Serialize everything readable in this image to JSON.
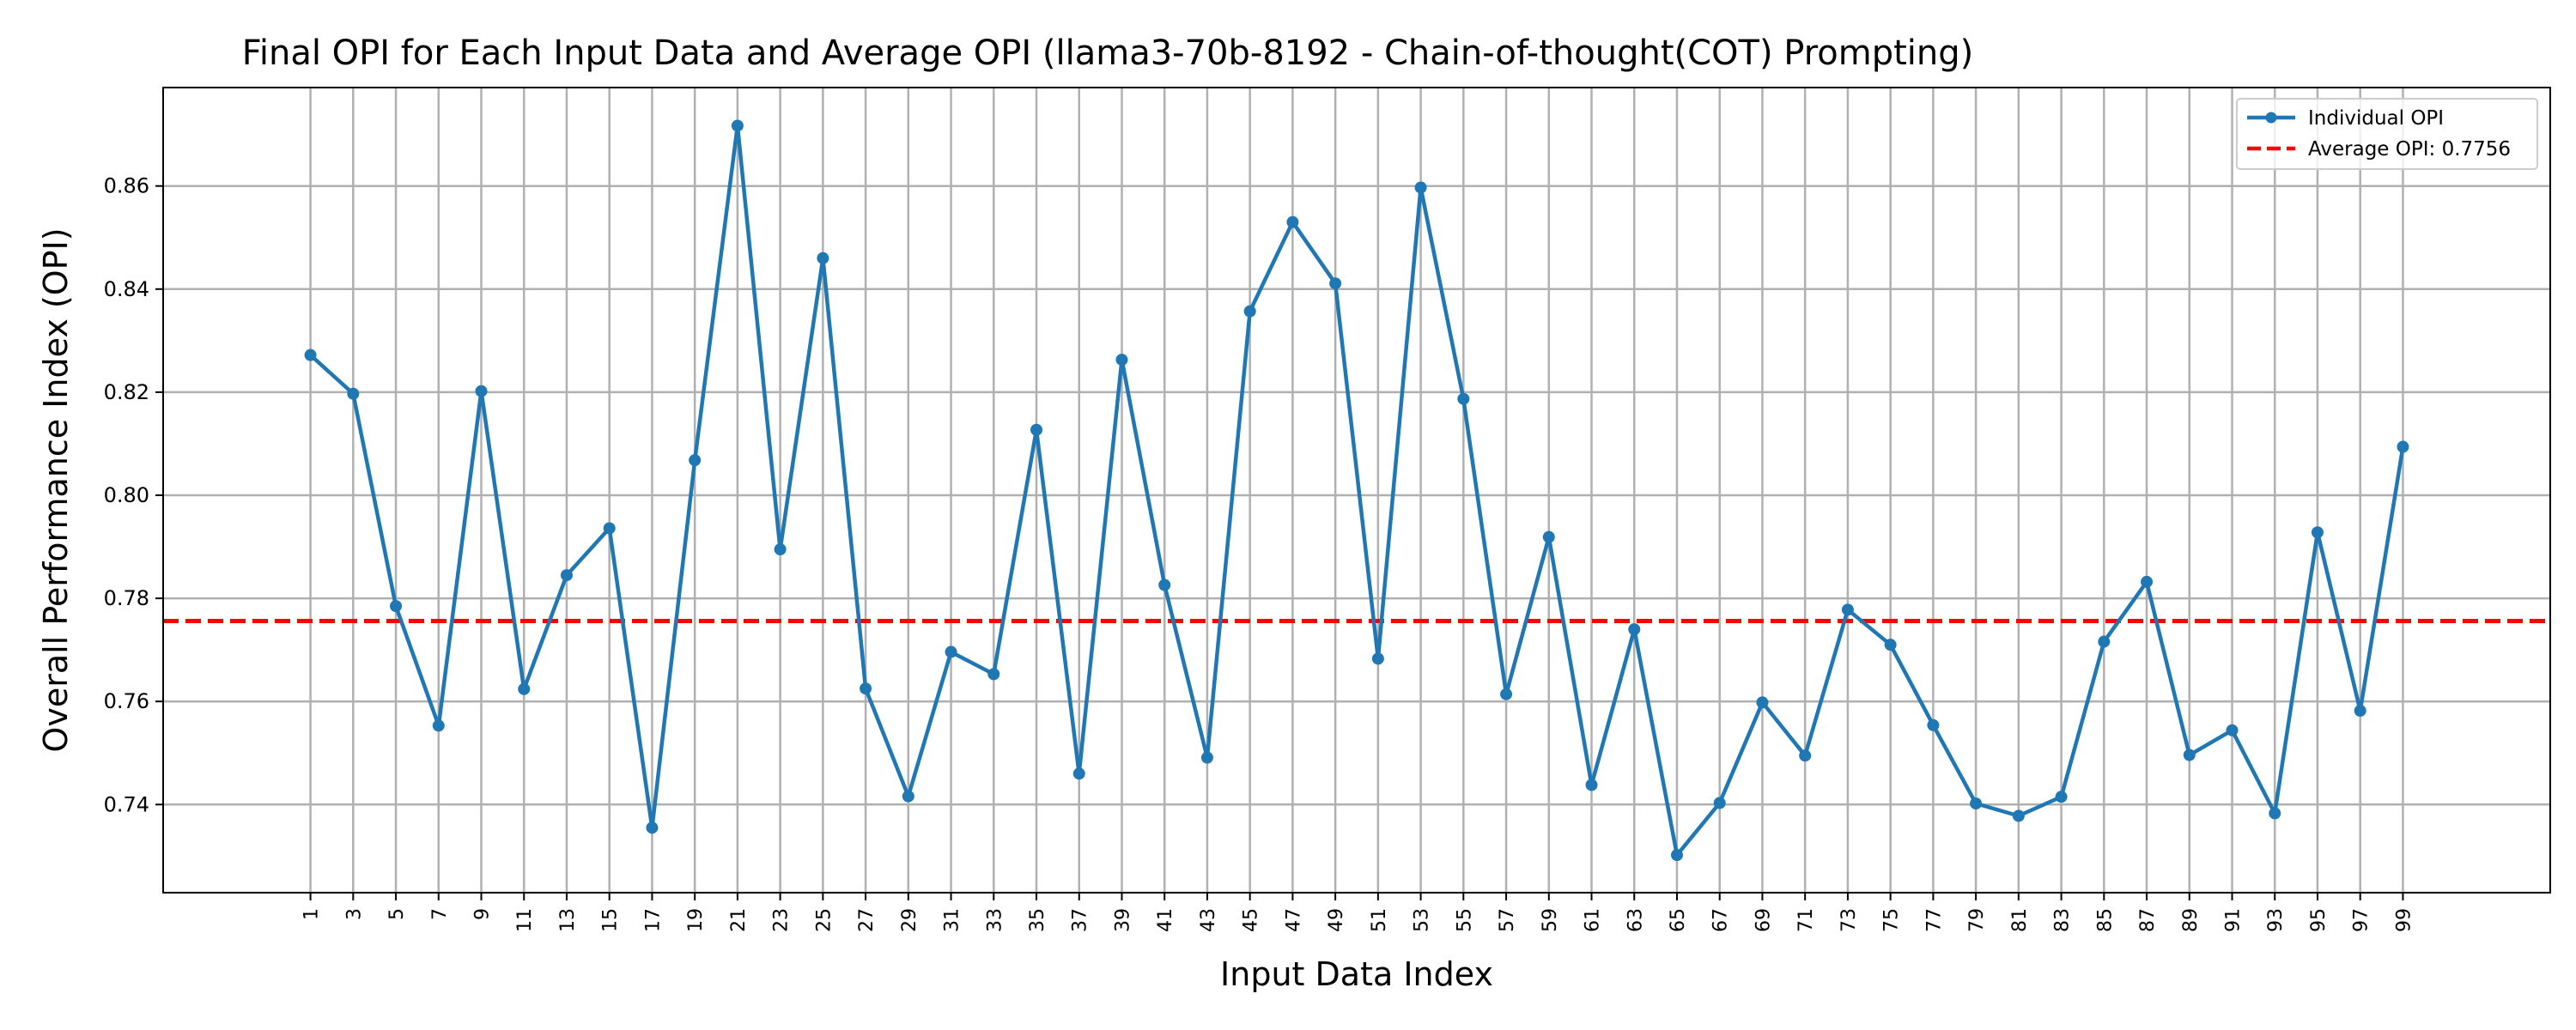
{
  "chart_data": {
    "type": "line",
    "title": "Final OPI for Each Input Data and Average OPI (llama3-70b-8192 - Chain-of-thought(COT) Prompting)",
    "xlabel": "Input Data Index",
    "ylabel": "Overall Performance Index (OPI)",
    "x": [
      1,
      3,
      5,
      7,
      9,
      11,
      13,
      15,
      17,
      19,
      21,
      23,
      25,
      27,
      29,
      31,
      33,
      35,
      37,
      39,
      41,
      43,
      45,
      47,
      49,
      51,
      53,
      55,
      57,
      59,
      61,
      63,
      65,
      67,
      69,
      71,
      73,
      75,
      77,
      79,
      81,
      83,
      85,
      87,
      89,
      91,
      93,
      95,
      97,
      99
    ],
    "xtick_labels": [
      "1",
      "3",
      "5",
      "7",
      "9",
      "11",
      "13",
      "15",
      "17",
      "19",
      "21",
      "23",
      "25",
      "27",
      "29",
      "31",
      "33",
      "35",
      "37",
      "39",
      "41",
      "43",
      "45",
      "47",
      "49",
      "51",
      "53",
      "55",
      "57",
      "59",
      "61",
      "63",
      "65",
      "67",
      "69",
      "71",
      "73",
      "75",
      "77",
      "79",
      "81",
      "83",
      "85",
      "87",
      "89",
      "91",
      "93",
      "95",
      "97",
      "99"
    ],
    "ytick_values": [
      0.74,
      0.76,
      0.78,
      0.8,
      0.82,
      0.84,
      0.86
    ],
    "ytick_labels": [
      "0.74",
      "0.76",
      "0.78",
      "0.80",
      "0.82",
      "0.84",
      "0.86"
    ],
    "xlim": [
      -5.9,
      105.9
    ],
    "ylim": [
      0.7229,
      0.8791
    ],
    "grid": true,
    "legend_position": "top-right",
    "series": [
      {
        "name": "Individual OPI",
        "color": "#1f77b4",
        "style": "solid line with circle markers",
        "values": [
          0.8272,
          0.8197,
          0.7785,
          0.7553,
          0.8202,
          0.7624,
          0.7845,
          0.7936,
          0.7355,
          0.8068,
          0.8717,
          0.7895,
          0.846,
          0.7625,
          0.7416,
          0.7696,
          0.7653,
          0.8127,
          0.746,
          0.8263,
          0.7826,
          0.7491,
          0.8357,
          0.853,
          0.8411,
          0.7683,
          0.8597,
          0.8187,
          0.7614,
          0.7919,
          0.7438,
          0.774,
          0.7302,
          0.7403,
          0.7598,
          0.7495,
          0.7778,
          0.771,
          0.7554,
          0.7402,
          0.7378,
          0.7415,
          0.7716,
          0.7832,
          0.7496,
          0.7544,
          0.7383,
          0.7928,
          0.7582,
          0.8094
        ]
      },
      {
        "name": "Average OPI: 0.7756",
        "color": "#ff0000",
        "style": "dashed horizontal line",
        "value": 0.7756
      }
    ]
  }
}
